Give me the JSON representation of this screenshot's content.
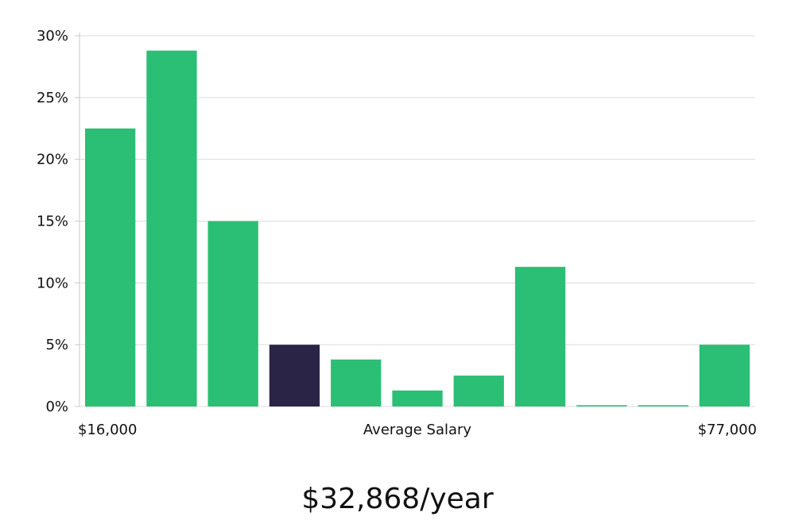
{
  "chart_data": {
    "type": "bar",
    "x_min_label": "$16,000",
    "x_max_label": "$77,000",
    "xlabel": "Average Salary",
    "ylim": [
      0,
      30
    ],
    "yticks": [
      0,
      5,
      10,
      15,
      20,
      25,
      30
    ],
    "ytick_labels": [
      "0%",
      "5%",
      "10%",
      "15%",
      "20%",
      "25%",
      "30%"
    ],
    "values": [
      22.5,
      28.8,
      15.0,
      5.0,
      3.8,
      1.3,
      2.5,
      11.3,
      0.1,
      0.1,
      5.0
    ],
    "highlight_index": 3,
    "grid": true,
    "colors": {
      "bar": "#2bbf75",
      "highlight": "#2a2547",
      "grid": "#dcdcdc",
      "axis": "#c8c8c8"
    }
  },
  "summary": {
    "headline": "$32,868/year"
  }
}
